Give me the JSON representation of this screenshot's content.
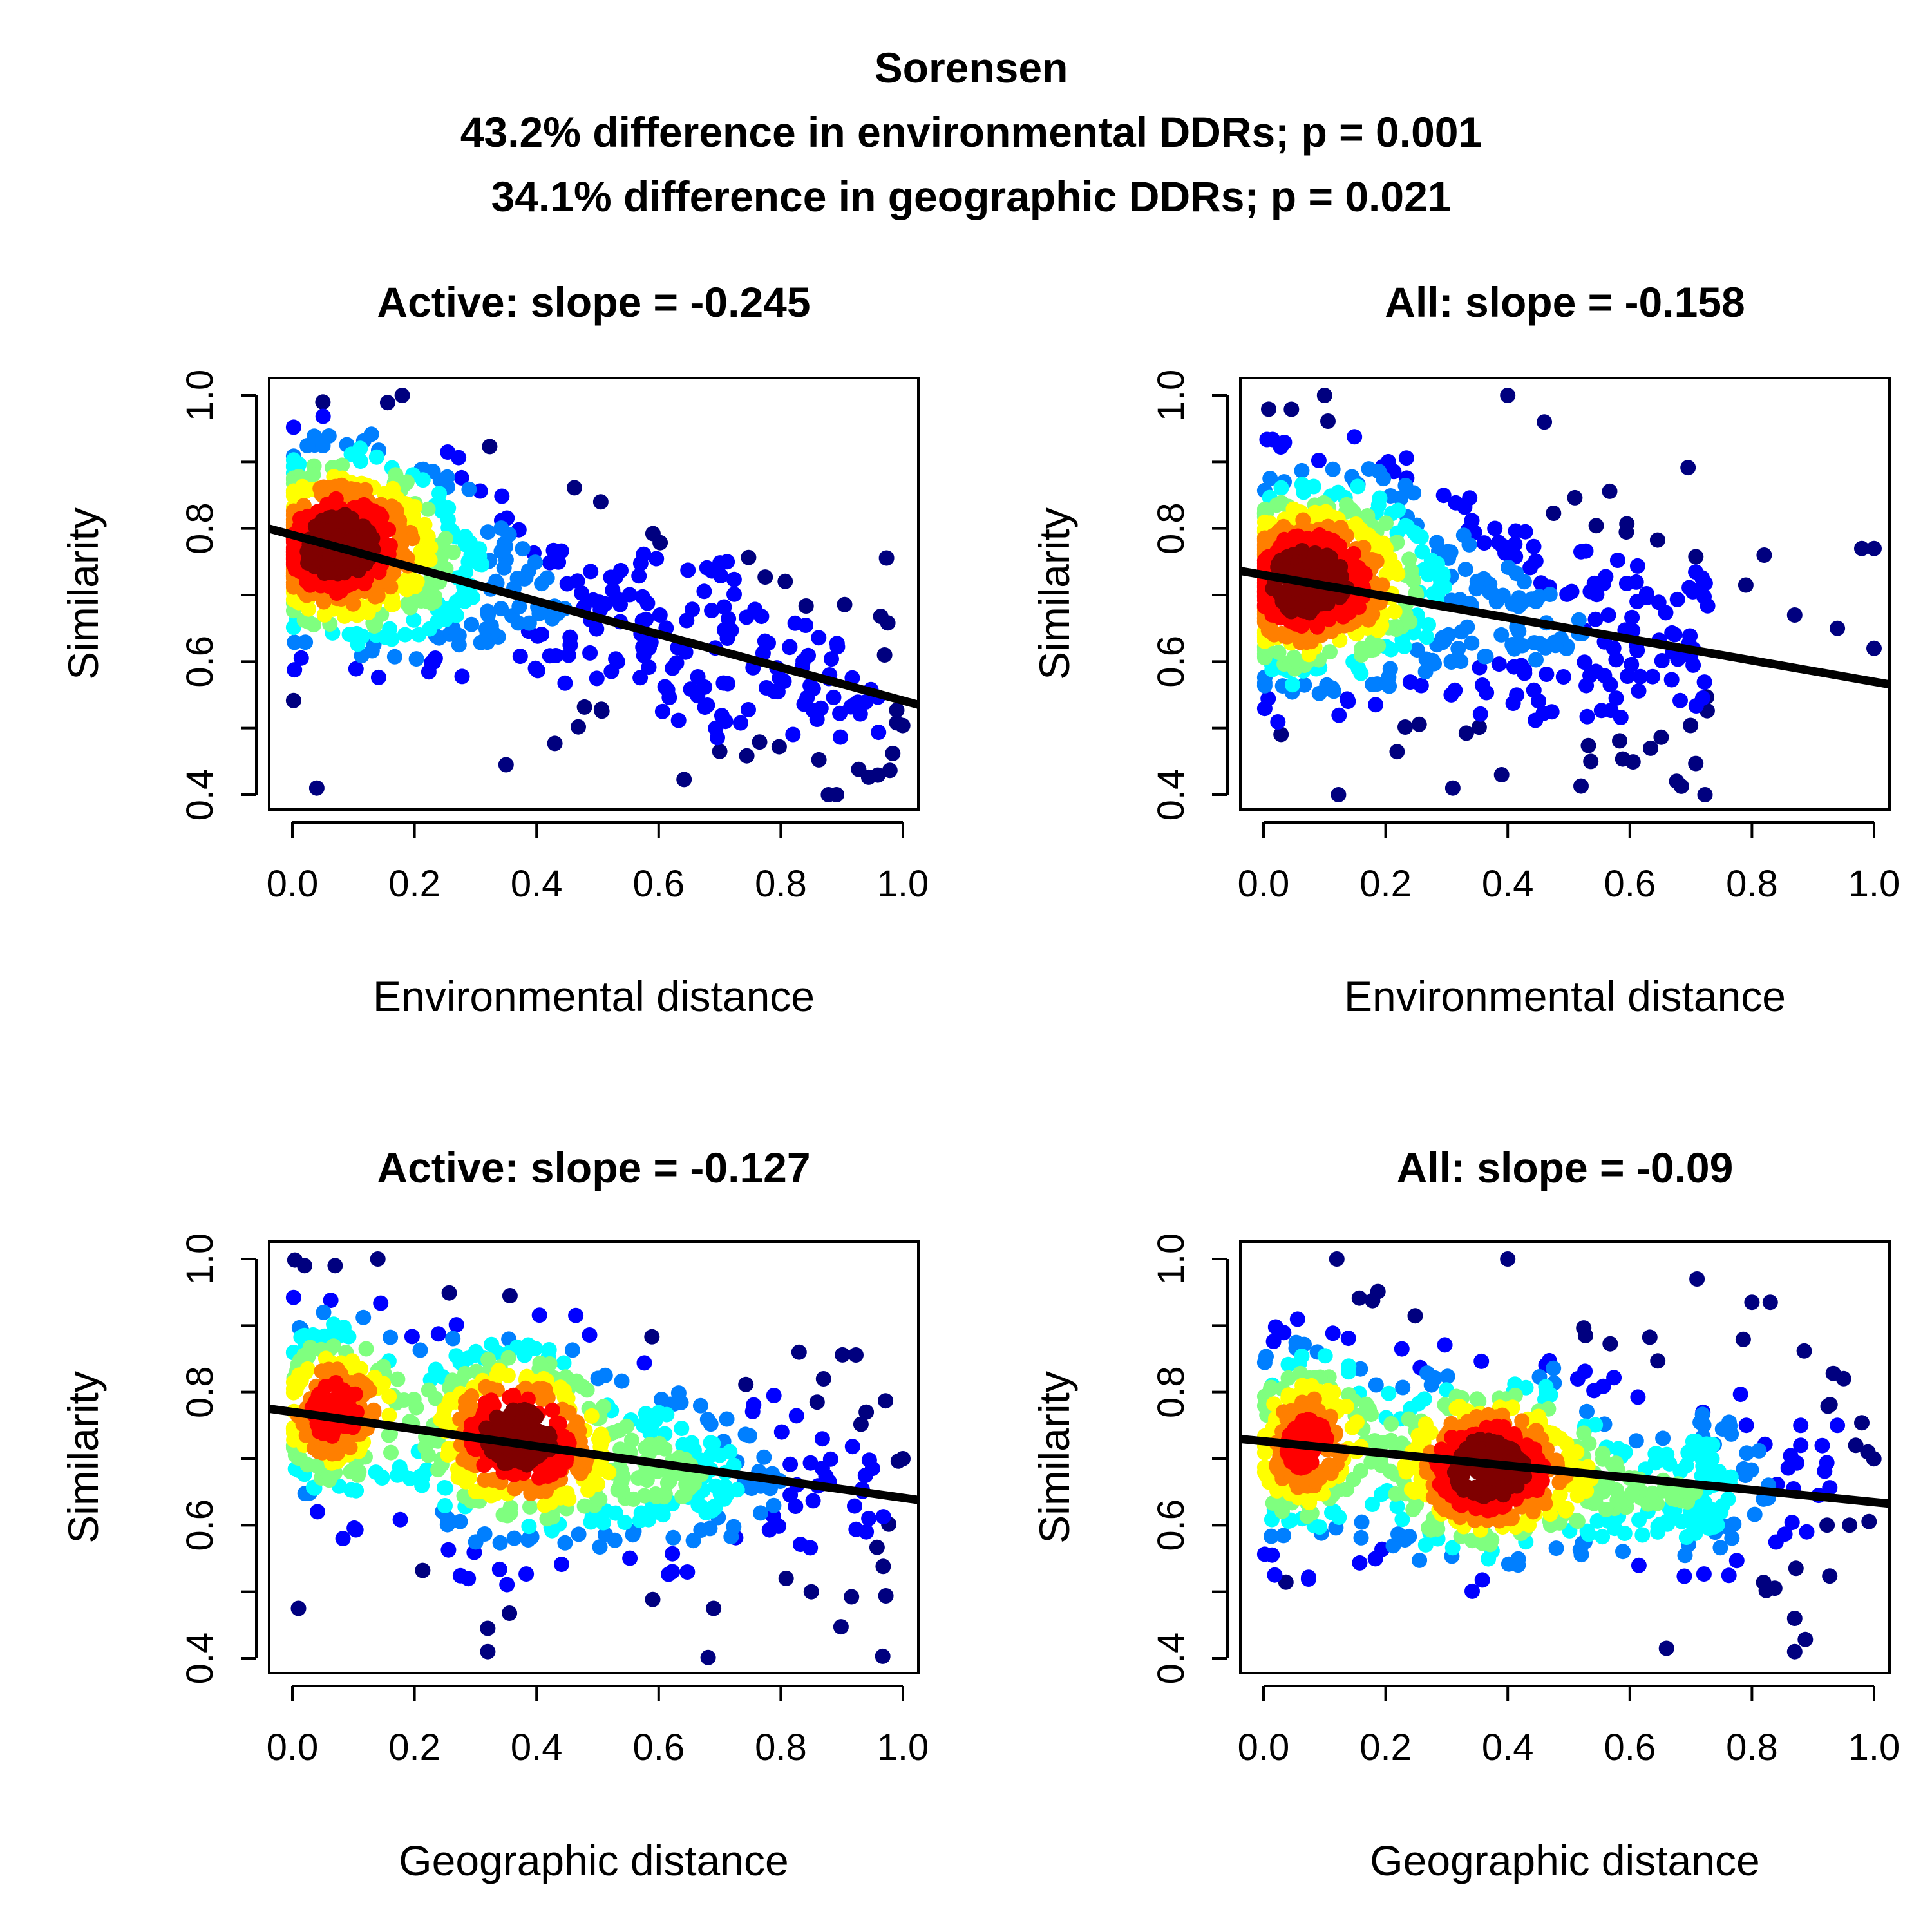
{
  "title": {
    "main": "Sorensen",
    "line2": "43.2% difference in environmental DDRs; p = 0.001",
    "line3": "34.1% difference in geographic DDRs; p = 0.021"
  },
  "colors": {
    "palette": [
      "#00007F",
      "#0000FF",
      "#007FFF",
      "#00FFFF",
      "#7FFF7F",
      "#FFFF00",
      "#FF7F00",
      "#FF0000",
      "#7F0000"
    ],
    "fit_line": "#000000"
  },
  "chart_data": [
    {
      "type": "scatter",
      "title": "Active: slope =  -0.245",
      "xlabel": "Environmental distance",
      "ylabel": "Similarity",
      "xlim": [
        0,
        1
      ],
      "ylim": [
        0.4,
        1.0
      ],
      "xticks": [
        "0.0",
        "0.2",
        "0.4",
        "0.6",
        "0.8",
        "1.0"
      ],
      "yticks": [
        "0.4",
        "0.6",
        "0.8",
        "1.0"
      ],
      "fit": {
        "slope": -0.245,
        "intercept": 0.79
      },
      "clusters": [
        {
          "x": 0.1,
          "y": 0.775,
          "sx": 0.09,
          "sy": 0.065,
          "n": 460
        }
      ],
      "n_points": 900,
      "x_max": 1.0,
      "noise_sd": 0.085,
      "outliers": [
        [
          0.04,
          0.41
        ],
        [
          0.35,
          0.445
        ],
        [
          0.43,
          0.477
        ],
        [
          0.7,
          0.465
        ],
        [
          0.99,
          0.508
        ],
        [
          0.99,
          0.527
        ],
        [
          0.18,
          1.0
        ],
        [
          0.05,
          0.99
        ],
        [
          0.88,
          0.58
        ],
        [
          0.97,
          0.61
        ]
      ]
    },
    {
      "type": "scatter",
      "title": "All: slope =  -0.158",
      "xlabel": "Environmental distance",
      "ylabel": "Similarity",
      "xlim": [
        0,
        1
      ],
      "ylim": [
        0.4,
        1.0
      ],
      "xticks": [
        "0.0",
        "0.2",
        "0.4",
        "0.6",
        "0.8",
        "1.0"
      ],
      "yticks": [
        "0.4",
        "0.6",
        "0.8",
        "1.0"
      ],
      "fit": {
        "slope": -0.158,
        "intercept": 0.73
      },
      "clusters": [
        {
          "x": 0.08,
          "y": 0.725,
          "sx": 0.1,
          "sy": 0.065,
          "n": 420
        }
      ],
      "n_points": 900,
      "x_max": 0.73,
      "noise_sd": 0.1,
      "outliers": [
        [
          0.31,
          0.41
        ],
        [
          0.52,
          0.413
        ],
        [
          0.39,
          0.43
        ],
        [
          0.1,
          1.0
        ],
        [
          0.4,
          1.0
        ],
        [
          0.46,
          0.96
        ],
        [
          1.0,
          0.62
        ],
        [
          0.98,
          0.77
        ],
        [
          1.0,
          0.77
        ],
        [
          0.82,
          0.76
        ],
        [
          0.79,
          0.715
        ],
        [
          0.87,
          0.67
        ],
        [
          0.94,
          0.65
        ]
      ]
    },
    {
      "type": "scatter",
      "title": "Active: slope =  -0.127",
      "xlabel": "Geographic distance",
      "ylabel": "Similarity",
      "xlim": [
        0,
        1
      ],
      "ylim": [
        0.4,
        1.0
      ],
      "xticks": [
        "0.0",
        "0.2",
        "0.4",
        "0.6",
        "0.8",
        "1.0"
      ],
      "yticks": [
        "0.4",
        "0.6",
        "0.8",
        "1.0"
      ],
      "fit": {
        "slope": -0.127,
        "intercept": 0.77
      },
      "clusters": [
        {
          "x": 0.07,
          "y": 0.78,
          "sx": 0.04,
          "sy": 0.06,
          "n": 220
        },
        {
          "x": 0.36,
          "y": 0.735,
          "sx": 0.07,
          "sy": 0.065,
          "n": 380
        },
        {
          "x": 0.6,
          "y": 0.67,
          "sx": 0.09,
          "sy": 0.05,
          "n": 150
        }
      ],
      "n_points": 1000,
      "x_max": 1.0,
      "noise_sd": 0.1,
      "outliers": [
        [
          0.32,
          0.41
        ],
        [
          0.32,
          0.445
        ],
        [
          0.01,
          0.475
        ],
        [
          0.69,
          0.475
        ],
        [
          0.85,
          0.5
        ],
        [
          0.14,
          1.0
        ],
        [
          0.02,
          0.99
        ],
        [
          0.07,
          0.99
        ],
        [
          0.83,
          0.86
        ],
        [
          0.87,
          0.82
        ],
        [
          0.94,
          0.77
        ],
        [
          1.0,
          0.7
        ],
        [
          0.94,
          0.59
        ]
      ]
    },
    {
      "type": "scatter",
      "title": "All: slope =  -0.09",
      "xlabel": "Geographic distance",
      "ylabel": "Similarity",
      "xlim": [
        0,
        1
      ],
      "ylim": [
        0.4,
        1.0
      ],
      "xticks": [
        "0.0",
        "0.2",
        "0.4",
        "0.6",
        "0.8",
        "1.0"
      ],
      "yticks": [
        "0.4",
        "0.6",
        "0.8",
        "1.0"
      ],
      "fit": {
        "slope": -0.09,
        "intercept": 0.726
      },
      "clusters": [
        {
          "x": 0.07,
          "y": 0.72,
          "sx": 0.035,
          "sy": 0.06,
          "n": 200
        },
        {
          "x": 0.37,
          "y": 0.68,
          "sx": 0.08,
          "sy": 0.06,
          "n": 420
        },
        {
          "x": 0.65,
          "y": 0.66,
          "sx": 0.08,
          "sy": 0.05,
          "n": 130
        }
      ],
      "n_points": 1000,
      "x_max": 1.0,
      "noise_sd": 0.1,
      "outliers": [
        [
          0.87,
          0.41
        ],
        [
          0.66,
          0.415
        ],
        [
          0.87,
          0.46
        ],
        [
          0.4,
          1.0
        ],
        [
          0.12,
          1.0
        ],
        [
          0.71,
          0.97
        ],
        [
          0.8,
          0.935
        ],
        [
          0.83,
          0.935
        ],
        [
          0.88,
          0.75
        ],
        [
          0.94,
          0.75
        ],
        [
          0.97,
          0.72
        ],
        [
          0.99,
          0.71
        ],
        [
          0.96,
          0.6
        ],
        [
          0.88,
          0.72
        ]
      ]
    }
  ]
}
